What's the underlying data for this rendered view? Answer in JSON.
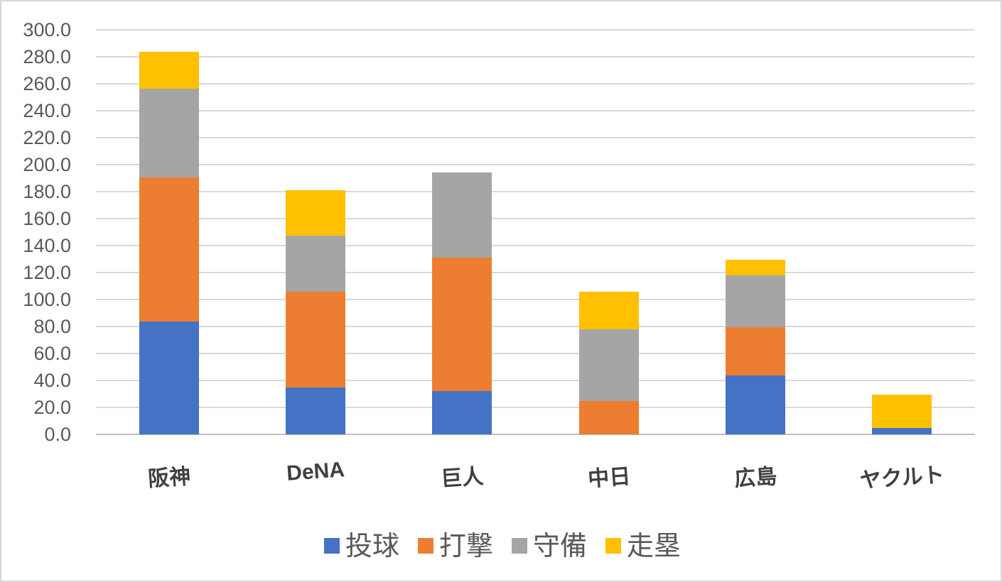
{
  "chart_data": {
    "type": "bar",
    "stacked": true,
    "title": "",
    "xlabel": "",
    "ylabel": "",
    "categories": [
      "阪神",
      "DeNA",
      "巨人",
      "中日",
      "広島",
      "ヤクルト"
    ],
    "series": [
      {
        "name": "投球",
        "color": "#4472C4",
        "values": [
          83.5,
          35.0,
          32.0,
          0.0,
          43.5,
          5.0
        ]
      },
      {
        "name": "打撃",
        "color": "#ED7D31",
        "values": [
          107.0,
          71.0,
          99.0,
          25.0,
          36.0,
          0.0
        ]
      },
      {
        "name": "守備",
        "color": "#A5A5A5",
        "values": [
          66.0,
          41.5,
          63.0,
          53.0,
          38.5,
          0.0
        ]
      },
      {
        "name": "走塁",
        "color": "#FFC000",
        "values": [
          27.0,
          33.5,
          0.0,
          28.0,
          11.5,
          24.5
        ]
      }
    ],
    "totals": [
      283.5,
      181.0,
      194.0,
      106.0,
      129.5,
      29.5
    ],
    "ylim": [
      0,
      300
    ],
    "ytick_step": 20,
    "ytick_labels": [
      "0.0",
      "20.0",
      "40.0",
      "60.0",
      "80.0",
      "100.0",
      "120.0",
      "140.0",
      "160.0",
      "180.0",
      "200.0",
      "220.0",
      "240.0",
      "260.0",
      "280.0",
      "300.0"
    ],
    "grid": true,
    "legend_position": "bottom",
    "legend_entries": [
      "投球",
      "打撃",
      "守備",
      "走塁"
    ]
  },
  "colors": {
    "grid": "#D9D9D9",
    "axis_line": "#BFBFBF",
    "tick_label": "#595959",
    "category_label": "#404040",
    "legend_label": "#595959",
    "background": "#FFFFFF",
    "frame_border": "#D6D6D6"
  }
}
